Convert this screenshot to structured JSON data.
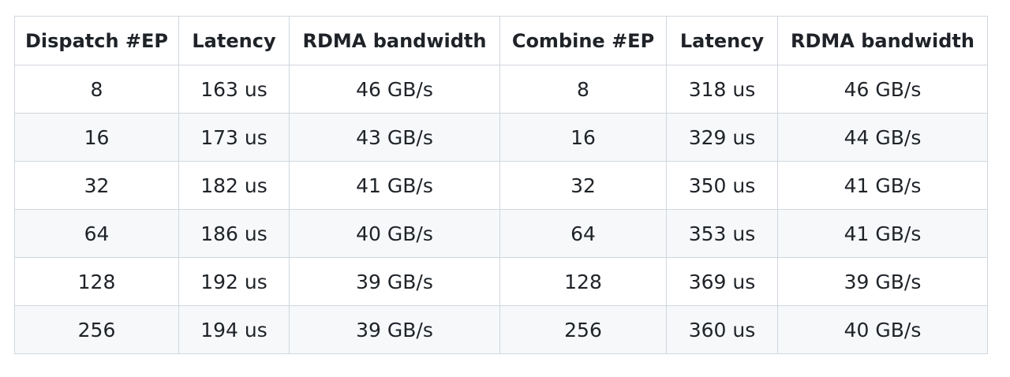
{
  "table": {
    "headers": [
      "Dispatch #EP",
      "Latency",
      "RDMA bandwidth",
      "Combine #EP",
      "Latency",
      "RDMA bandwidth"
    ],
    "rows": [
      [
        "8",
        "163 us",
        "46 GB/s",
        "8",
        "318 us",
        "46 GB/s"
      ],
      [
        "16",
        "173 us",
        "43 GB/s",
        "16",
        "329 us",
        "44 GB/s"
      ],
      [
        "32",
        "182 us",
        "41 GB/s",
        "32",
        "350 us",
        "41 GB/s"
      ],
      [
        "64",
        "186 us",
        "40 GB/s",
        "64",
        "353 us",
        "41 GB/s"
      ],
      [
        "128",
        "192 us",
        "39 GB/s",
        "128",
        "369 us",
        "39 GB/s"
      ],
      [
        "256",
        "194 us",
        "39 GB/s",
        "256",
        "360 us",
        "40 GB/s"
      ]
    ]
  },
  "colors": {
    "border": "#d0d7de",
    "stripe": "#f6f8fa",
    "text": "#1f2328"
  }
}
